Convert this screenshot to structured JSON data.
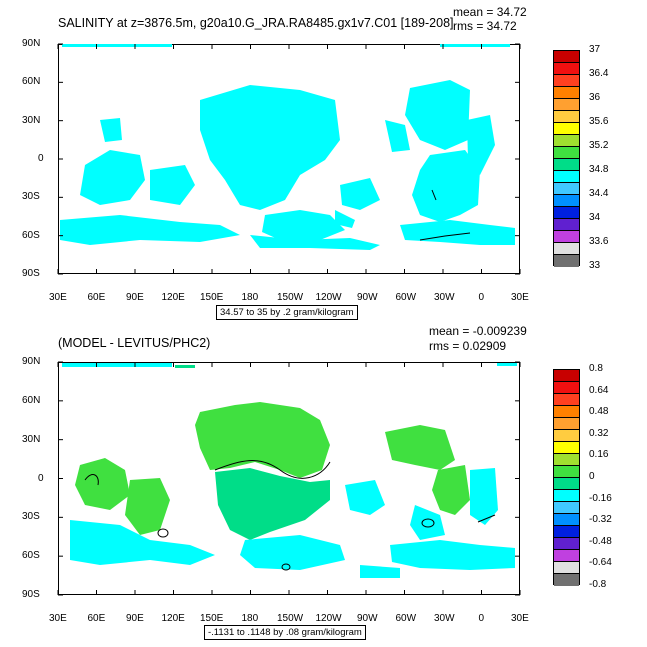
{
  "top_panel": {
    "title": "SALINITY at z=3876.5m, g20a10.G_JRA.RA8485.gx1v7.C01 [189-208]",
    "mean": "mean = 34.72",
    "rms": "rms = 34.72",
    "range_label": "34.57 to 35 by .2 gram/kilogram",
    "colorbar_labels": [
      "37",
      "36.4",
      "36",
      "35.6",
      "35.2",
      "34.8",
      "34.4",
      "34",
      "33.6",
      "33"
    ],
    "colorbar_colors": [
      "#c80000",
      "#f01010",
      "#ff4020",
      "#ff8000",
      "#ffa030",
      "#ffcc40",
      "#ffff00",
      "#a0e030",
      "#40e040",
      "#00dd88",
      "#00ffff",
      "#40c8ff",
      "#0090ff",
      "#0020e0",
      "#6020d0",
      "#c040e0",
      "#e0e0e0",
      "#707070"
    ]
  },
  "bottom_panel": {
    "title": "(MODEL - LEVITUS/PHC2)",
    "mean": "mean = -0.009239",
    "rms": "rms = 0.02909",
    "range_label": "-.1131 to .1148 by .08 gram/kilogram",
    "colorbar_labels": [
      "0.8",
      "0.64",
      "0.48",
      "0.32",
      "0.16",
      "0",
      "-0.16",
      "-0.32",
      "-0.48",
      "-0.64",
      "-0.8"
    ],
    "colorbar_colors": [
      "#c80000",
      "#f01010",
      "#ff4020",
      "#ff8000",
      "#ffa030",
      "#ffcc40",
      "#ffff00",
      "#a0e030",
      "#40e040",
      "#00dd88",
      "#00ffff",
      "#40c8ff",
      "#0090ff",
      "#0020e0",
      "#6020d0",
      "#c040e0",
      "#e0e0e0",
      "#707070"
    ]
  },
  "lat_labels": [
    "90N",
    "60N",
    "30N",
    "0",
    "30S",
    "60S",
    "90S"
  ],
  "lon_labels": [
    "30E",
    "60E",
    "90E",
    "120E",
    "150E",
    "180",
    "150W",
    "120W",
    "90W",
    "60W",
    "30W",
    "0",
    "30E"
  ],
  "colors": {
    "cyan": "#00ffff",
    "green": "#40e040",
    "teal": "#00dd88"
  }
}
